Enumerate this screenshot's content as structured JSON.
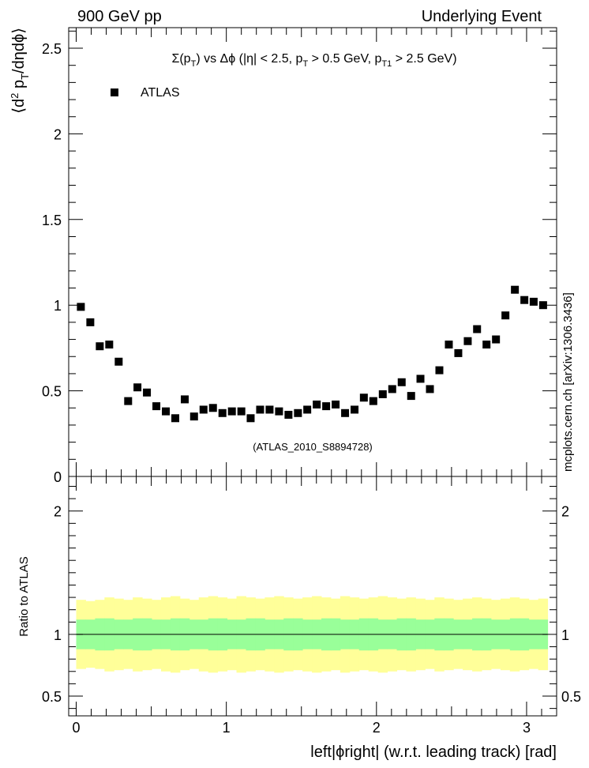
{
  "header": {
    "left": "900 GeV pp",
    "right": "Underlying Event"
  },
  "watermark": {
    "side": "mcplots.cern.ch [arXiv:1306.3436]",
    "analysis": "(ATLAS_2010_S8894728)"
  },
  "colors": {
    "markers": "#000000",
    "band_inner": "#99ff99",
    "band_outer": "#ffff99",
    "ratio_line": "#000000",
    "watermark": "#808080"
  },
  "chart_data": [
    {
      "type": "scatter",
      "panel": "main",
      "title": "Σ(p_T) vs Δϕ (|η| < 2.5, p_T > 0.5 GeV, p_T1 > 2.5 GeV)",
      "title_parts": {
        "a": "Σ(p",
        "a_sub": "T",
        "b": ") vs Δϕ (|η| < 2.5, p",
        "b_sub": "T",
        "c": " > 0.5 GeV, p",
        "c_sub": "T1",
        "d": " > 2.5 GeV)"
      },
      "ylabel": "⟨d² p_T/dηdϕ⟩",
      "ylabel_parts": {
        "open": "⟨d",
        "sup": "2",
        "mid": " p",
        "sub": "T",
        "close": "/dηdϕ⟩"
      },
      "xlim": [
        -0.05,
        3.2
      ],
      "ylim": [
        0,
        2.62
      ],
      "yticks": [
        0,
        0.5,
        1,
        1.5,
        2,
        2.5
      ],
      "ytick_labels": [
        "0",
        "0.5",
        "1",
        "1.5",
        "2",
        "2.5"
      ],
      "legend": {
        "label": "ATLAS",
        "placement": "top-left"
      },
      "series": [
        {
          "name": "ATLAS",
          "x": [
            0.031,
            0.094,
            0.157,
            0.22,
            0.283,
            0.346,
            0.408,
            0.471,
            0.534,
            0.597,
            0.66,
            0.723,
            0.785,
            0.848,
            0.911,
            0.974,
            1.037,
            1.1,
            1.162,
            1.225,
            1.288,
            1.351,
            1.414,
            1.477,
            1.539,
            1.602,
            1.665,
            1.728,
            1.791,
            1.854,
            1.916,
            1.979,
            2.042,
            2.105,
            2.168,
            2.231,
            2.293,
            2.356,
            2.419,
            2.482,
            2.545,
            2.608,
            2.67,
            2.733,
            2.796,
            2.859,
            2.922,
            2.985,
            3.047,
            3.11
          ],
          "y": [
            0.99,
            0.9,
            0.76,
            0.77,
            0.67,
            0.44,
            0.52,
            0.49,
            0.41,
            0.38,
            0.34,
            0.45,
            0.35,
            0.39,
            0.4,
            0.37,
            0.38,
            0.38,
            0.34,
            0.39,
            0.39,
            0.38,
            0.36,
            0.37,
            0.39,
            0.42,
            0.41,
            0.42,
            0.37,
            0.39,
            0.46,
            0.44,
            0.48,
            0.51,
            0.55,
            0.47,
            0.57,
            0.51,
            0.62,
            0.77,
            0.72,
            0.79,
            0.86,
            0.77,
            0.8,
            0.94,
            1.09,
            1.03,
            1.02,
            1.0
          ]
        }
      ]
    },
    {
      "type": "area",
      "panel": "ratio",
      "ylabel": "Ratio to ATLAS",
      "xlabel": "left|ϕright| (w.r.t. leading track) [rad]",
      "xlim": [
        -0.05,
        3.2
      ],
      "ylim": [
        0.34,
        2.28
      ],
      "yticks": [
        0.5,
        1,
        2
      ],
      "ytick_labels": [
        "0.5",
        "1",
        "2"
      ],
      "xticks": [
        0,
        1,
        2,
        3
      ],
      "xtick_labels": [
        "0",
        "1",
        "2",
        "3"
      ],
      "reference": 1,
      "bin_edges_step": 0.0628,
      "band_inner_halfwidth": [
        0.12,
        0.12,
        0.13,
        0.13,
        0.12,
        0.12,
        0.13,
        0.13,
        0.12,
        0.12,
        0.13,
        0.13,
        0.12,
        0.12,
        0.13,
        0.13,
        0.12,
        0.12,
        0.13,
        0.13,
        0.12,
        0.12,
        0.13,
        0.13,
        0.12,
        0.12,
        0.13,
        0.13,
        0.12,
        0.12,
        0.13,
        0.13,
        0.12,
        0.12,
        0.13,
        0.13,
        0.12,
        0.12,
        0.13,
        0.13,
        0.12,
        0.12,
        0.13,
        0.13,
        0.12,
        0.12,
        0.13,
        0.13,
        0.12,
        0.12
      ],
      "band_outer_halfwidth": [
        0.28,
        0.27,
        0.28,
        0.3,
        0.29,
        0.28,
        0.3,
        0.29,
        0.28,
        0.3,
        0.31,
        0.29,
        0.28,
        0.3,
        0.31,
        0.3,
        0.29,
        0.31,
        0.3,
        0.29,
        0.3,
        0.31,
        0.3,
        0.29,
        0.3,
        0.31,
        0.3,
        0.29,
        0.31,
        0.3,
        0.29,
        0.3,
        0.31,
        0.3,
        0.29,
        0.3,
        0.29,
        0.28,
        0.3,
        0.29,
        0.28,
        0.29,
        0.3,
        0.29,
        0.28,
        0.29,
        0.3,
        0.29,
        0.28,
        0.29
      ]
    }
  ]
}
